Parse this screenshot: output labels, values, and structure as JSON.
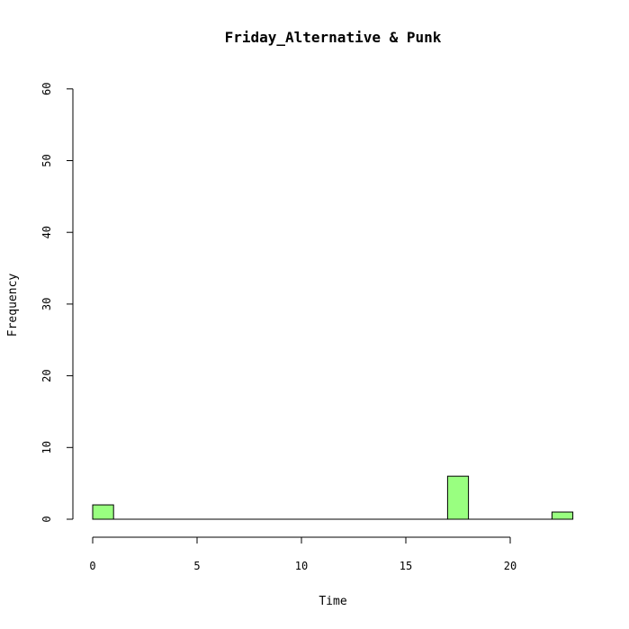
{
  "chart_data": {
    "type": "bar",
    "title": "Friday_Alternative & Punk",
    "xlabel": "Time",
    "ylabel": "Frequency",
    "xlim": [
      0,
      24
    ],
    "ylim": [
      0,
      60
    ],
    "bin_width": 1,
    "x_ticks": [
      0,
      5,
      10,
      15,
      20
    ],
    "y_ticks": [
      0,
      10,
      20,
      30,
      40,
      50,
      60
    ],
    "bins": [
      0,
      1,
      2,
      3,
      4,
      5,
      6,
      7,
      8,
      9,
      10,
      11,
      12,
      13,
      14,
      15,
      16,
      17,
      18,
      19,
      20,
      21,
      22
    ],
    "values": [
      2,
      0,
      0,
      0,
      0,
      0,
      0,
      0,
      0,
      0,
      0,
      0,
      0,
      0,
      0,
      0,
      0,
      6,
      0,
      0,
      0,
      0,
      1
    ],
    "bar_color": "#99ff80",
    "grid": false
  }
}
